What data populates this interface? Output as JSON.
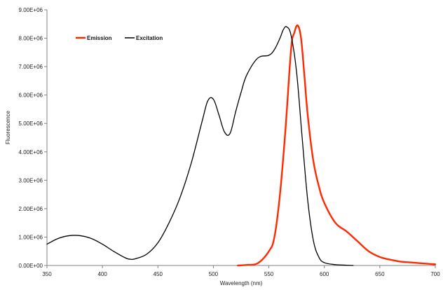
{
  "chart_data": {
    "type": "line",
    "title": "",
    "xlabel": "Wavelength (nm)",
    "ylabel": "Fluorescence",
    "xlim": [
      350,
      700
    ],
    "ylim": [
      0,
      9000000
    ],
    "x_ticks": [
      "350",
      "400",
      "450",
      "500",
      "550",
      "600",
      "650",
      "700"
    ],
    "y_ticks": [
      "0.00E+00",
      "1.00E+06",
      "2.00E+06",
      "3.00E+06",
      "4.00E+06",
      "5.00E+06",
      "6.00E+06",
      "7.00E+06",
      "8.00E+06",
      "9.00E+06"
    ],
    "grid": false,
    "legend": {
      "placement": "top-left",
      "entries": [
        {
          "name": "Emission",
          "color": "#ff2a00"
        },
        {
          "name": "Excitation",
          "color": "#000000"
        }
      ]
    },
    "series": [
      {
        "name": "Emission",
        "color": "#ff2a00",
        "x": [
          522,
          530,
          540,
          550,
          555,
          560,
          565,
          570,
          573,
          576,
          579,
          582,
          585,
          590,
          595,
          600,
          610,
          620,
          630,
          640,
          650,
          660,
          670,
          680,
          690,
          700
        ],
        "y": [
          0,
          20000,
          80000,
          500000,
          1000000,
          2500000,
          4800000,
          7600000,
          8200000,
          8450000,
          8000000,
          6700000,
          5300000,
          3700000,
          2800000,
          2200000,
          1500000,
          1200000,
          850000,
          500000,
          300000,
          200000,
          130000,
          100000,
          70000,
          40000
        ]
      },
      {
        "name": "Excitation",
        "color": "#000000",
        "x": [
          350,
          360,
          370,
          380,
          390,
          400,
          410,
          420,
          425,
          430,
          440,
          450,
          460,
          470,
          480,
          490,
          495,
          500,
          505,
          510,
          515,
          520,
          525,
          530,
          540,
          550,
          555,
          560,
          563,
          566,
          570,
          575,
          580,
          585,
          590,
          595,
          600,
          610,
          620,
          626
        ],
        "y": [
          750000,
          950000,
          1050000,
          1050000,
          950000,
          750000,
          500000,
          280000,
          220000,
          240000,
          400000,
          800000,
          1500000,
          2400000,
          3600000,
          5100000,
          5800000,
          5850000,
          5300000,
          4700000,
          4650000,
          5400000,
          6100000,
          6700000,
          7300000,
          7400000,
          7600000,
          8000000,
          8300000,
          8400000,
          8100000,
          6800000,
          4500000,
          2300000,
          900000,
          300000,
          100000,
          30000,
          10000,
          0
        ]
      }
    ]
  }
}
